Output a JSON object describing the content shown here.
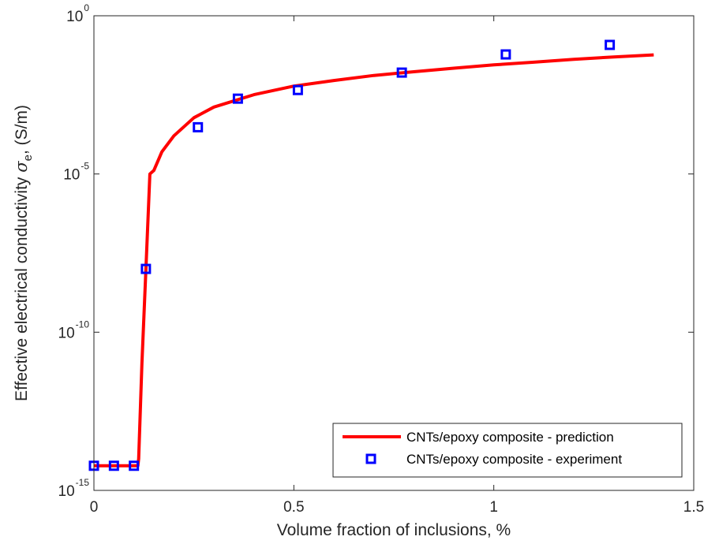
{
  "chart_data": {
    "type": "line",
    "xlabel": "Volume fraction of inclusions, %",
    "ylabel_main": "Effective electrical conductivity ",
    "ylabel_symbol": "σ",
    "ylabel_subscript": "e",
    "ylabel_unit": ", (S/m)",
    "xlim": [
      0,
      1.5
    ],
    "ylim": [
      1e-15,
      1
    ],
    "yscale": "log",
    "grid": false,
    "legend_position": "bottom-right",
    "x_ticks": [
      {
        "value": 0,
        "label": "0"
      },
      {
        "value": 0.5,
        "label": "0.5"
      },
      {
        "value": 1,
        "label": "1"
      },
      {
        "value": 1.5,
        "label": "1.5"
      }
    ],
    "y_ticks": [
      {
        "value": 1e-15,
        "base": "10",
        "exp": "-15"
      },
      {
        "value": 1e-10,
        "base": "10",
        "exp": "-10"
      },
      {
        "value": 1e-05,
        "base": "10",
        "exp": "-5"
      },
      {
        "value": 1,
        "base": "10",
        "exp": "0"
      }
    ],
    "series": [
      {
        "name": "CNTs/epoxy composite - prediction",
        "kind": "line",
        "color": "#ff0000",
        "points": [
          [
            0,
            6e-15
          ],
          [
            0.05,
            6e-15
          ],
          [
            0.1,
            6e-15
          ],
          [
            0.11,
            6e-15
          ],
          [
            0.112,
            1e-14
          ],
          [
            0.12,
            1e-11
          ],
          [
            0.13,
            1e-08
          ],
          [
            0.14,
            1e-05
          ],
          [
            0.15,
            1.3e-05
          ],
          [
            0.17,
            5e-05
          ],
          [
            0.2,
            0.00016
          ],
          [
            0.25,
            0.0006
          ],
          [
            0.3,
            0.0013
          ],
          [
            0.4,
            0.0032
          ],
          [
            0.5,
            0.006
          ],
          [
            0.6,
            0.009
          ],
          [
            0.7,
            0.013
          ],
          [
            0.8,
            0.017
          ],
          [
            0.9,
            0.022
          ],
          [
            1.0,
            0.028
          ],
          [
            1.1,
            0.034
          ],
          [
            1.2,
            0.042
          ],
          [
            1.3,
            0.05
          ],
          [
            1.4,
            0.058
          ]
        ]
      },
      {
        "name": "CNTs/epoxy composite - experiment",
        "kind": "markers",
        "marker": "square",
        "color": "#0000ff",
        "points": [
          [
            0,
            6e-15
          ],
          [
            0.05,
            6e-15
          ],
          [
            0.1,
            6e-15
          ],
          [
            0.13,
            1e-08
          ],
          [
            0.26,
            0.0003
          ],
          [
            0.36,
            0.0024
          ],
          [
            0.51,
            0.0045
          ],
          [
            0.77,
            0.016
          ],
          [
            1.03,
            0.06
          ],
          [
            1.29,
            0.12
          ]
        ]
      }
    ]
  }
}
